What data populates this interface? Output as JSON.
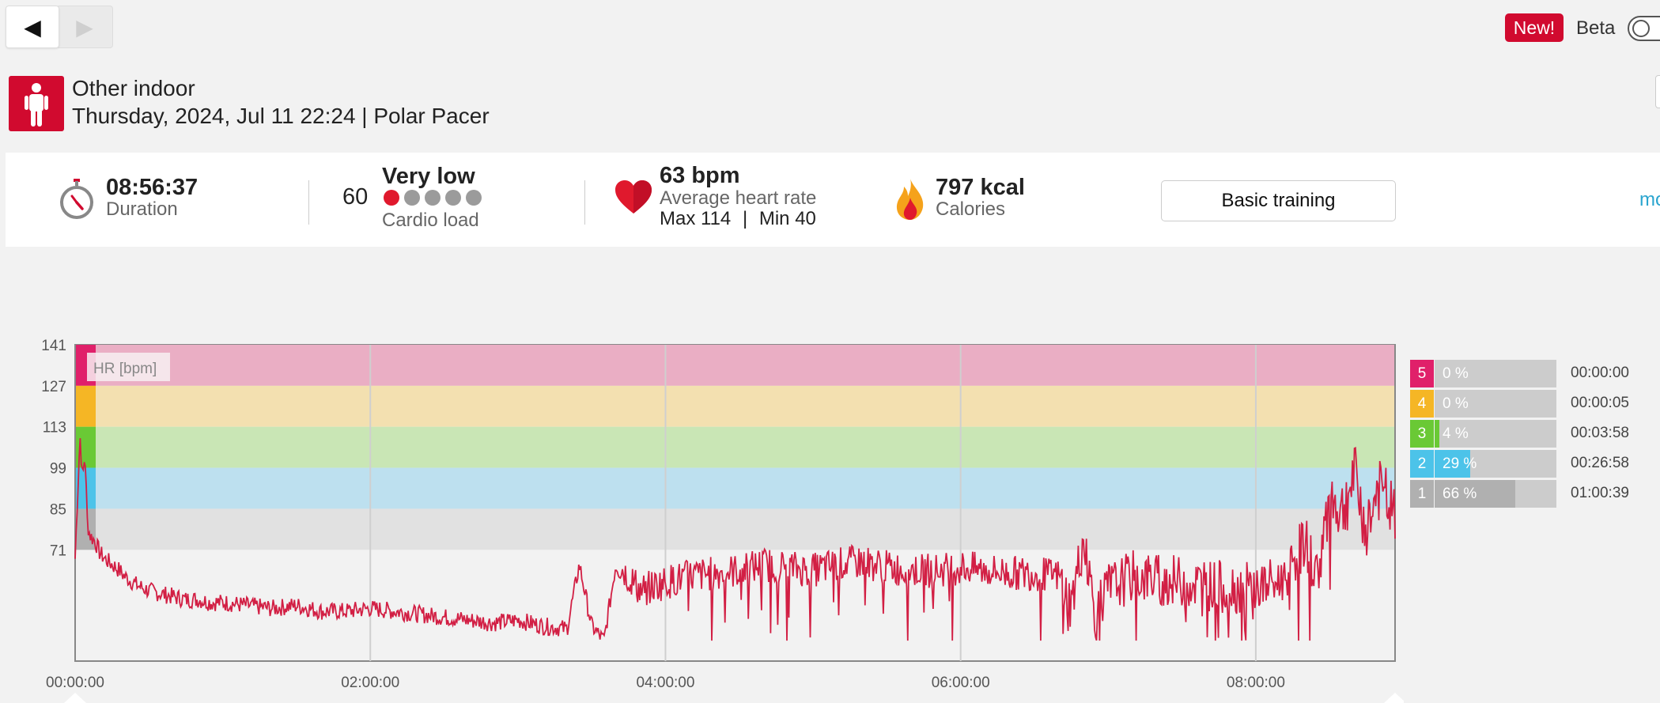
{
  "nav": {
    "back_icon": "◀",
    "forward_icon": "▶"
  },
  "badge": {
    "new": "New!",
    "beta": "Beta"
  },
  "session": {
    "sport": "Other indoor",
    "meta": "Thursday, 2024, Jul 11 22:24 | Polar Pacer"
  },
  "summary": {
    "duration_value": "08:56:37",
    "duration_label": "Duration",
    "cardio_value": "60",
    "cardio_level": "Very low",
    "cardio_label": "Cardio load",
    "cardio_dots_active": 1,
    "cardio_dots_total": 5,
    "hr_value": "63 bpm",
    "hr_label": "Average heart rate",
    "hr_max": "Max 114",
    "hr_separator": "|",
    "hr_min": "Min 40",
    "calories_value": "797 kcal",
    "calories_label": "Calories",
    "benefit_button": "Basic training",
    "more_link": "mo"
  },
  "colors": {
    "brand_red": "#d10a2f",
    "hr_line": "#d21f44",
    "link": "#2aa5cf",
    "zone5": "#e0206a",
    "zone4": "#f5b625",
    "zone3": "#6ac935",
    "zone2": "#4cc3e9",
    "zone1": "#b0b0b0"
  },
  "chart_data": {
    "type": "line",
    "series_label": "HR [bpm]",
    "y_ticks": [
      141,
      127,
      113,
      99,
      85,
      71
    ],
    "ylim": [
      33,
      141
    ],
    "x_ticks": [
      "00:00:00",
      "02:00:00",
      "04:00:00",
      "06:00:00",
      "08:00:00"
    ],
    "xlim_seconds": [
      0,
      32197
    ],
    "zones": [
      {
        "zone": 5,
        "min": 127,
        "max": 141,
        "color": "#eaaec4"
      },
      {
        "zone": 4,
        "min": 113,
        "max": 127,
        "color": "#f3e0b0"
      },
      {
        "zone": 3,
        "min": 99,
        "max": 113,
        "color": "#c9e6b5"
      },
      {
        "zone": 2,
        "min": 85,
        "max": 99,
        "color": "#bde0ef"
      },
      {
        "zone": 1,
        "min": 71,
        "max": 85,
        "color": "#e1e1e1"
      }
    ],
    "hr_series": {
      "x_minutes": [
        0,
        1,
        2,
        3,
        4,
        5,
        6,
        8,
        10,
        12,
        15,
        18,
        20,
        25,
        30,
        35,
        40,
        45,
        50,
        55,
        60,
        70,
        80,
        90,
        100,
        110,
        120,
        130,
        140,
        150,
        160,
        170,
        180,
        190,
        200,
        205,
        210,
        215,
        220,
        230,
        240,
        250,
        260,
        270,
        280,
        290,
        300,
        310,
        320,
        330,
        340,
        350,
        360,
        370,
        380,
        390,
        400,
        405,
        410,
        415,
        420,
        430,
        440,
        450,
        460,
        470,
        480,
        490,
        500,
        505,
        510,
        515,
        520,
        525,
        530,
        536
      ],
      "hr": [
        68,
        90,
        110,
        95,
        104,
        80,
        76,
        74,
        70,
        68,
        66,
        64,
        62,
        59,
        57,
        56,
        55,
        54,
        54,
        53,
        53,
        52,
        51,
        52,
        50,
        50,
        51,
        50,
        49,
        48,
        47,
        46,
        47,
        45,
        44,
        66,
        45,
        40,
        67,
        57,
        60,
        62,
        63,
        64,
        66,
        65,
        64,
        66,
        67,
        65,
        64,
        64,
        65,
        64,
        63,
        63,
        62,
        52,
        75,
        48,
        58,
        62,
        61,
        60,
        59,
        58,
        58,
        60,
        74,
        62,
        90,
        84,
        96,
        78,
        92,
        83
      ]
    }
  },
  "zones_summary": [
    {
      "zone": "5",
      "percent": "0 %",
      "fraction": 0.0,
      "time": "00:00:00",
      "color": "#e0206a"
    },
    {
      "zone": "4",
      "percent": "0 %",
      "fraction": 0.0,
      "time": "00:00:05",
      "color": "#f5b625"
    },
    {
      "zone": "3",
      "percent": "4 %",
      "fraction": 0.04,
      "time": "00:03:58",
      "color": "#6ac935"
    },
    {
      "zone": "2",
      "percent": "29 %",
      "fraction": 0.29,
      "time": "00:26:58",
      "color": "#4cc3e9"
    },
    {
      "zone": "1",
      "percent": "66 %",
      "fraction": 0.66,
      "time": "01:00:39",
      "color": "#b0b0b0"
    }
  ]
}
